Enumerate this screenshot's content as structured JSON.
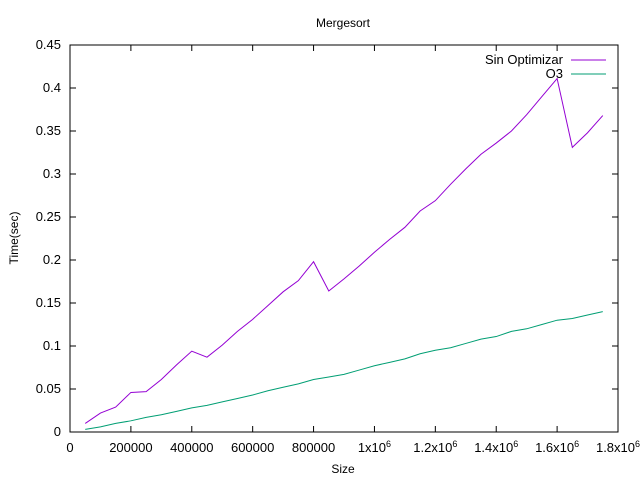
{
  "chart_data": {
    "type": "line",
    "title": "Mergesort",
    "xlabel": "Size",
    "ylabel": "Time(sec)",
    "xlim": [
      0,
      1800000
    ],
    "ylim": [
      0,
      0.45
    ],
    "grid": false,
    "legend_position": "top-right",
    "x_ticks": [
      {
        "value": 0,
        "label": "0"
      },
      {
        "value": 200000,
        "label": "200000"
      },
      {
        "value": 400000,
        "label": "400000"
      },
      {
        "value": 600000,
        "label": "600000"
      },
      {
        "value": 800000,
        "label": "800000"
      },
      {
        "value": 1000000,
        "label": "1x10",
        "sup": "6"
      },
      {
        "value": 1200000,
        "label": "1.2x10",
        "sup": "6"
      },
      {
        "value": 1400000,
        "label": "1.4x10",
        "sup": "6"
      },
      {
        "value": 1600000,
        "label": "1.6x10",
        "sup": "6"
      },
      {
        "value": 1800000,
        "label": "1.8x10",
        "sup": "6"
      }
    ],
    "y_ticks": [
      {
        "value": 0,
        "label": "0"
      },
      {
        "value": 0.05,
        "label": "0.05"
      },
      {
        "value": 0.1,
        "label": "0.1"
      },
      {
        "value": 0.15,
        "label": "0.15"
      },
      {
        "value": 0.2,
        "label": "0.2"
      },
      {
        "value": 0.25,
        "label": "0.25"
      },
      {
        "value": 0.3,
        "label": "0.3"
      },
      {
        "value": 0.35,
        "label": "0.35"
      },
      {
        "value": 0.4,
        "label": "0.4"
      },
      {
        "value": 0.45,
        "label": "0.45"
      }
    ],
    "x": [
      50000,
      100000,
      150000,
      200000,
      250000,
      300000,
      350000,
      400000,
      450000,
      500000,
      550000,
      600000,
      650000,
      700000,
      750000,
      800000,
      850000,
      900000,
      950000,
      1000000,
      1050000,
      1100000,
      1150000,
      1200000,
      1250000,
      1300000,
      1350000,
      1400000,
      1450000,
      1500000,
      1550000,
      1600000,
      1650000,
      1700000,
      1750000
    ],
    "series": [
      {
        "name": "Sin Optimizar",
        "color": "#9400d3",
        "values": [
          0.01,
          0.022,
          0.029,
          0.046,
          0.047,
          0.061,
          0.078,
          0.094,
          0.087,
          0.101,
          0.117,
          0.131,
          0.147,
          0.163,
          0.176,
          0.198,
          0.164,
          0.178,
          0.193,
          0.209,
          0.224,
          0.238,
          0.257,
          0.269,
          0.288,
          0.306,
          0.323,
          0.336,
          0.35,
          0.369,
          0.39,
          0.411,
          0.331,
          0.348,
          0.368
        ]
      },
      {
        "name": "O3",
        "color": "#009e73",
        "values": [
          0.003,
          0.006,
          0.01,
          0.013,
          0.017,
          0.02,
          0.024,
          0.028,
          0.031,
          0.035,
          0.039,
          0.043,
          0.048,
          0.052,
          0.056,
          0.061,
          0.064,
          0.067,
          0.072,
          0.077,
          0.081,
          0.085,
          0.091,
          0.095,
          0.098,
          0.103,
          0.108,
          0.111,
          0.117,
          0.12,
          0.125,
          0.13,
          0.132,
          0.136,
          0.14
        ]
      }
    ]
  }
}
